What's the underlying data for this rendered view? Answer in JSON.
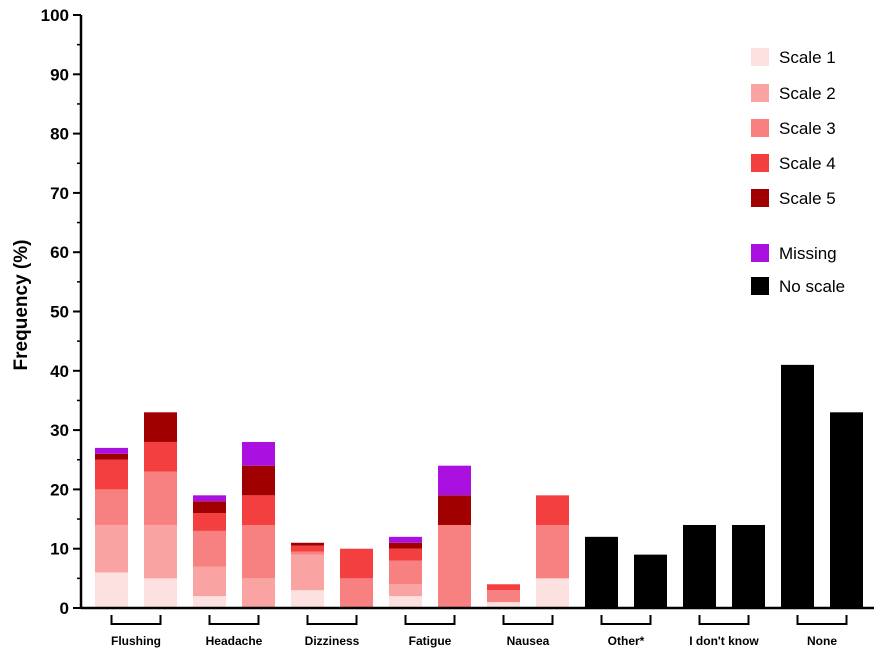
{
  "chart_data": {
    "type": "bar",
    "stacked": true,
    "ylabel": "Frequency (%)",
    "ylim": [
      0,
      100
    ],
    "yticks": [
      0,
      10,
      20,
      30,
      40,
      50,
      60,
      70,
      80,
      90,
      100
    ],
    "grid": false,
    "legend_position": "top-right",
    "groups": [
      "Flushing",
      "Headache",
      "Dizziness",
      "Fatigue",
      "Nausea",
      "Other*",
      "I don't know",
      "None"
    ],
    "series": [
      {
        "name": "Scale 1",
        "color": "#fde0e0"
      },
      {
        "name": "Scale 2",
        "color": "#f9a3a3"
      },
      {
        "name": "Scale 3",
        "color": "#f78181"
      },
      {
        "name": "Scale 4",
        "color": "#f33f3f"
      },
      {
        "name": "Scale 5",
        "color": "#a00000"
      },
      {
        "name": "Missing",
        "color": "#aa10e0"
      },
      {
        "name": "No scale",
        "color": "#000000"
      }
    ],
    "bars": [
      {
        "group": "Flushing",
        "segments": [
          6,
          8,
          6,
          5,
          1,
          1,
          0
        ]
      },
      {
        "group": "Flushing",
        "segments": [
          5,
          9,
          9,
          5,
          5,
          0,
          0
        ]
      },
      {
        "group": "Headache",
        "segments": [
          2,
          5,
          6,
          3,
          2,
          1,
          0
        ]
      },
      {
        "group": "Headache",
        "segments": [
          0,
          5,
          9,
          5,
          5,
          4,
          0
        ]
      },
      {
        "group": "Dizziness",
        "segments": [
          3,
          6,
          0.5,
          1,
          0.5,
          0,
          0
        ]
      },
      {
        "group": "Dizziness",
        "segments": [
          0,
          0,
          5,
          5,
          0,
          0,
          0
        ]
      },
      {
        "group": "Fatigue",
        "segments": [
          2,
          2,
          4,
          2,
          1,
          1,
          0
        ]
      },
      {
        "group": "Fatigue",
        "segments": [
          0,
          0,
          14,
          0,
          5,
          5,
          0
        ]
      },
      {
        "group": "Nausea",
        "segments": [
          1,
          0,
          2,
          1,
          0,
          0,
          0
        ]
      },
      {
        "group": "Nausea",
        "segments": [
          5,
          0,
          9,
          5,
          0,
          0,
          0
        ]
      },
      {
        "group": "Other*",
        "segments": [
          0,
          0,
          0,
          0,
          0,
          0,
          12
        ]
      },
      {
        "group": "Other*",
        "segments": [
          0,
          0,
          0,
          0,
          0,
          0,
          9
        ]
      },
      {
        "group": "I don't know",
        "segments": [
          0,
          0,
          0,
          0,
          0,
          0,
          14
        ]
      },
      {
        "group": "I don't know",
        "segments": [
          0,
          0,
          0,
          0,
          0,
          0,
          14
        ]
      },
      {
        "group": "None",
        "segments": [
          0,
          0,
          0,
          0,
          0,
          0,
          41
        ]
      },
      {
        "group": "None",
        "segments": [
          0,
          0,
          0,
          0,
          0,
          0,
          33
        ]
      }
    ]
  }
}
